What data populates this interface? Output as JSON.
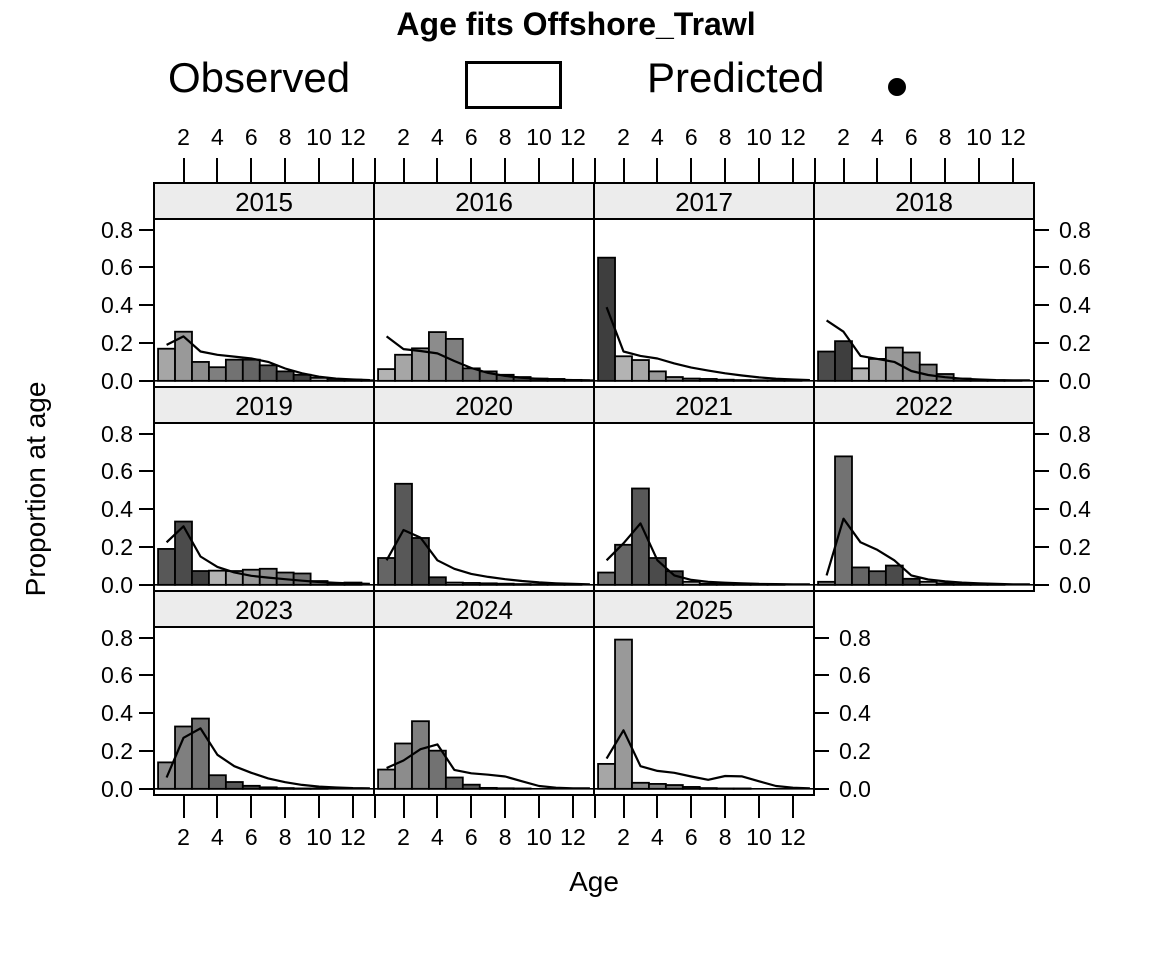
{
  "title": "Age fits Offshore_Trawl",
  "legend": {
    "observed_label": "Observed",
    "observed_symbol": "open-rectangle",
    "predicted_label": "Predicted",
    "predicted_symbol": "filled-circle"
  },
  "axes": {
    "x_label": "Age",
    "y_label": "Proportion at age",
    "x_tick_values": [
      2,
      4,
      6,
      8,
      10,
      12
    ],
    "y_tick_labels": [
      "0.0",
      "0.2",
      "0.4",
      "0.6",
      "0.8"
    ],
    "y_tick_values": [
      0.0,
      0.2,
      0.4,
      0.6,
      0.8
    ]
  },
  "colors": {
    "background": "#ffffff",
    "strip_background": "#ececec",
    "panel_border": "#000000",
    "bar_stroke": "#000000",
    "predicted_line": "#000000",
    "cohort_shade_palette": [
      "#3e3e3e",
      "#4b4b4b",
      "#585858",
      "#656565",
      "#727272",
      "#7f7f7f",
      "#8c8c8c",
      "#999999",
      "#a6a6a6",
      "#b3b3b3"
    ],
    "cohort_darkest_year": 2016,
    "shade_cycle_length": 10
  },
  "chart_data": {
    "type": "bar",
    "title": "Age fits Offshore_Trawl",
    "xlabel": "Age",
    "ylabel": "Proportion at age",
    "legend_entries": [
      "Observed",
      "Predicted"
    ],
    "legend_position": "top",
    "grid": "off",
    "ages": [
      1,
      2,
      3,
      4,
      5,
      6,
      7,
      8,
      9,
      10,
      11,
      12,
      13
    ],
    "xlim": [
      0.2,
      13.3
    ],
    "ylim": [
      -0.038,
      0.862
    ],
    "panel_grid": {
      "rows": 3,
      "cols": 4
    },
    "panels": [
      {
        "year": "2015",
        "row": 0,
        "col": 0,
        "observed": [
          0.17,
          0.26,
          0.1,
          0.072,
          0.112,
          0.112,
          0.082,
          0.05,
          0.032,
          0.016,
          0.01,
          0.006,
          0.003
        ],
        "predicted": [
          0.19,
          0.235,
          0.155,
          0.138,
          0.128,
          0.118,
          0.1,
          0.065,
          0.04,
          0.022,
          0.012,
          0.007,
          0.004
        ]
      },
      {
        "year": "2016",
        "row": 0,
        "col": 1,
        "observed": [
          0.062,
          0.138,
          0.172,
          0.258,
          0.222,
          0.066,
          0.05,
          0.032,
          0.02,
          0.012,
          0.01,
          0.005,
          0.003
        ],
        "predicted": [
          0.235,
          0.168,
          0.158,
          0.145,
          0.105,
          0.068,
          0.042,
          0.026,
          0.016,
          0.01,
          0.006,
          0.004,
          0.003
        ]
      },
      {
        "year": "2017",
        "row": 0,
        "col": 2,
        "observed": [
          0.652,
          0.13,
          0.11,
          0.05,
          0.02,
          0.012,
          0.01,
          0.006,
          0.004,
          0.003,
          0.002,
          0.002,
          0.001
        ],
        "predicted": [
          0.39,
          0.155,
          0.132,
          0.118,
          0.092,
          0.07,
          0.054,
          0.04,
          0.028,
          0.018,
          0.011,
          0.007,
          0.004
        ]
      },
      {
        "year": "2018",
        "row": 0,
        "col": 3,
        "observed": [
          0.155,
          0.21,
          0.066,
          0.116,
          0.176,
          0.15,
          0.086,
          0.036,
          0.012,
          0.005,
          0.003,
          0.002,
          0.001
        ],
        "predicted": [
          0.32,
          0.26,
          0.132,
          0.116,
          0.1,
          0.052,
          0.031,
          0.019,
          0.011,
          0.007,
          0.004,
          0.003,
          0.002
        ]
      },
      {
        "year": "2019",
        "row": 1,
        "col": 0,
        "observed": [
          0.19,
          0.335,
          0.073,
          0.075,
          0.073,
          0.08,
          0.085,
          0.065,
          0.06,
          0.02,
          0.006,
          0.012,
          0.001
        ],
        "predicted": [
          0.225,
          0.31,
          0.15,
          0.095,
          0.066,
          0.048,
          0.038,
          0.03,
          0.022,
          0.015,
          0.01,
          0.007,
          0.005
        ]
      },
      {
        "year": "2020",
        "row": 1,
        "col": 1,
        "observed": [
          0.142,
          0.535,
          0.248,
          0.04,
          0.012,
          0.01,
          0.008,
          0.006,
          0.004,
          0.003,
          0.002,
          0.002,
          0.001
        ],
        "predicted": [
          0.13,
          0.29,
          0.25,
          0.13,
          0.085,
          0.058,
          0.042,
          0.03,
          0.02,
          0.013,
          0.008,
          0.005,
          0.003
        ]
      },
      {
        "year": "2021",
        "row": 1,
        "col": 2,
        "observed": [
          0.065,
          0.212,
          0.51,
          0.142,
          0.072,
          0.016,
          0.006,
          0.004,
          0.003,
          0.002,
          0.002,
          0.001,
          0.001
        ],
        "predicted": [
          0.13,
          0.22,
          0.325,
          0.13,
          0.05,
          0.026,
          0.016,
          0.011,
          0.008,
          0.005,
          0.004,
          0.003,
          0.002
        ]
      },
      {
        "year": "2022",
        "row": 1,
        "col": 3,
        "observed": [
          0.016,
          0.68,
          0.092,
          0.072,
          0.102,
          0.032,
          0.016,
          0.008,
          0.004,
          0.002,
          0.002,
          0.001,
          0.001
        ],
        "predicted": [
          0.05,
          0.35,
          0.225,
          0.185,
          0.13,
          0.05,
          0.028,
          0.018,
          0.012,
          0.008,
          0.005,
          0.003,
          0.002
        ]
      },
      {
        "year": "2023",
        "row": 2,
        "col": 0,
        "observed": [
          0.14,
          0.33,
          0.372,
          0.072,
          0.036,
          0.016,
          0.008,
          0.004,
          0.002,
          0.002,
          0.001,
          0.001,
          0.0
        ],
        "predicted": [
          0.06,
          0.27,
          0.32,
          0.18,
          0.12,
          0.085,
          0.055,
          0.035,
          0.021,
          0.012,
          0.007,
          0.004,
          0.003
        ]
      },
      {
        "year": "2024",
        "row": 2,
        "col": 1,
        "observed": [
          0.102,
          0.24,
          0.358,
          0.202,
          0.06,
          0.022,
          0.005,
          0.003,
          0.002,
          0.001,
          0.001,
          0.001,
          0.0
        ],
        "predicted": [
          0.11,
          0.15,
          0.21,
          0.235,
          0.1,
          0.082,
          0.075,
          0.065,
          0.04,
          0.015,
          0.006,
          0.003,
          0.002
        ]
      },
      {
        "year": "2025",
        "row": 2,
        "col": 2,
        "observed": [
          0.132,
          0.79,
          0.032,
          0.026,
          0.02,
          0.01,
          0.004,
          0.002,
          0.002,
          0.001,
          0.001,
          0.0,
          0.0
        ],
        "predicted": [
          0.16,
          0.31,
          0.12,
          0.095,
          0.085,
          0.065,
          0.048,
          0.068,
          0.066,
          0.04,
          0.015,
          0.006,
          0.003
        ]
      }
    ]
  }
}
